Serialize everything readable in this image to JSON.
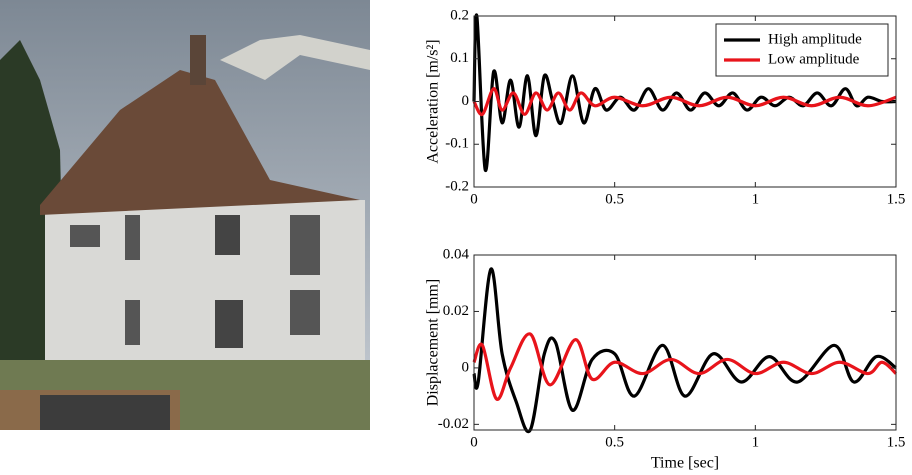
{
  "chart_data": [
    {
      "type": "line",
      "ylabel": "Acceleration [m/s²]",
      "xlim": [
        0,
        1.5
      ],
      "xticks": [
        0,
        0.5,
        1,
        1.5
      ],
      "ylim": [
        -0.2,
        0.2
      ],
      "yticks": [
        -0.2,
        -0.1,
        0,
        0.1,
        0.2
      ],
      "legend": "upper right",
      "series": [
        {
          "name": "High amplitude",
          "color": "#000000",
          "x": [
            0,
            0.01,
            0.04,
            0.07,
            0.1,
            0.13,
            0.16,
            0.19,
            0.22,
            0.25,
            0.28,
            0.31,
            0.35,
            0.39,
            0.43,
            0.47,
            0.52,
            0.57,
            0.62,
            0.67,
            0.72,
            0.77,
            0.82,
            0.87,
            0.92,
            0.97,
            1.02,
            1.07,
            1.12,
            1.17,
            1.22,
            1.27,
            1.32,
            1.36,
            1.4,
            1.45,
            1.5
          ],
          "values": [
            0,
            0.2,
            -0.16,
            0.07,
            -0.05,
            0.05,
            -0.06,
            0.06,
            -0.08,
            0.06,
            0,
            -0.05,
            0.06,
            -0.05,
            0.03,
            -0.02,
            0.01,
            -0.02,
            0.03,
            -0.02,
            0.02,
            -0.02,
            0.02,
            -0.01,
            0.02,
            -0.02,
            0.01,
            -0.01,
            0.01,
            -0.01,
            0.02,
            -0.01,
            0.03,
            -0.01,
            0.01,
            0,
            0
          ]
        },
        {
          "name": "Low amplitude",
          "color": "#e8141b",
          "x": [
            0,
            0.03,
            0.07,
            0.1,
            0.14,
            0.18,
            0.22,
            0.26,
            0.3,
            0.34,
            0.38,
            0.43,
            0.5,
            0.6,
            0.7,
            0.8,
            0.9,
            1.0,
            1.1,
            1.2,
            1.3,
            1.4,
            1.5
          ],
          "values": [
            0,
            -0.03,
            0.03,
            -0.02,
            0.02,
            -0.03,
            0.02,
            -0.02,
            0.02,
            -0.02,
            0.02,
            -0.01,
            0.01,
            -0.01,
            0.01,
            -0.01,
            0.01,
            -0.01,
            0.01,
            -0.01,
            0.01,
            -0.01,
            0.01
          ]
        }
      ]
    },
    {
      "type": "line",
      "ylabel": "Displacement [mm]",
      "xlabel": "Time [sec]",
      "xlim": [
        0,
        1.5
      ],
      "xticks": [
        0,
        0.5,
        1,
        1.5
      ],
      "ylim": [
        -0.022,
        0.04
      ],
      "yticks": [
        -0.02,
        0,
        0.02,
        0.04
      ],
      "series": [
        {
          "color": "#000000",
          "x": [
            0,
            0.015,
            0.06,
            0.1,
            0.15,
            0.2,
            0.25,
            0.29,
            0.35,
            0.42,
            0.5,
            0.57,
            0.67,
            0.75,
            0.85,
            0.95,
            1.05,
            1.15,
            1.28,
            1.35,
            1.43,
            1.5
          ],
          "values": [
            -0.002,
            -0.005,
            0.035,
            0.005,
            -0.012,
            -0.022,
            0.005,
            0.009,
            -0.015,
            0.003,
            0.005,
            -0.01,
            0.008,
            -0.01,
            0.005,
            -0.005,
            0.004,
            -0.005,
            0.008,
            -0.005,
            0.004,
            0
          ]
        },
        {
          "color": "#e8141b",
          "x": [
            0,
            0.03,
            0.08,
            0.13,
            0.2,
            0.27,
            0.36,
            0.42,
            0.5,
            0.6,
            0.7,
            0.8,
            0.9,
            1.0,
            1.1,
            1.2,
            1.3,
            1.4,
            1.45,
            1.5
          ],
          "values": [
            0.002,
            0.008,
            -0.011,
            0,
            0.012,
            -0.006,
            0.01,
            -0.004,
            0.002,
            -0.002,
            0.003,
            -0.002,
            0.003,
            -0.002,
            0.002,
            -0.002,
            0.002,
            -0.002,
            0.002,
            -0.002
          ]
        }
      ]
    }
  ]
}
